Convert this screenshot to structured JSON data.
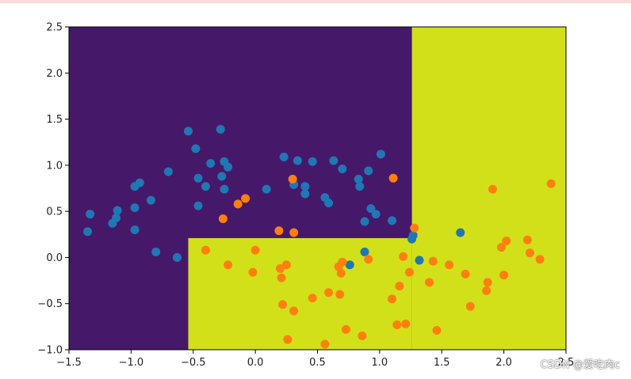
{
  "chart_data": {
    "type": "scatter",
    "title": "",
    "xlabel": "",
    "ylabel": "",
    "xlim": [
      -1.5,
      2.5
    ],
    "ylim": [
      -1.0,
      2.5
    ],
    "xticks": [
      "−1.5",
      "−1.0",
      "−0.5",
      "0.0",
      "0.5",
      "1.0",
      "1.5",
      "2.0",
      "2.5"
    ],
    "yticks": [
      "−1.0",
      "−0.5",
      "0.0",
      "0.5",
      "1.0",
      "1.5",
      "2.0",
      "2.5"
    ],
    "xtick_values": [
      -1.5,
      -1.0,
      -0.5,
      0.0,
      0.5,
      1.0,
      1.5,
      2.0,
      2.5
    ],
    "ytick_values": [
      -1.0,
      -0.5,
      0.0,
      0.5,
      1.0,
      1.5,
      2.0,
      2.5
    ],
    "grid": false,
    "decision_regions": {
      "class0_color": "#46186a",
      "class1_color": "#d2e019",
      "class1_rects": [
        {
          "x0": 1.26,
          "x1": 2.5,
          "y0": -1.0,
          "y1": 2.5
        },
        {
          "x0": -0.54,
          "x1": 1.26,
          "y0": -1.0,
          "y1": 0.21
        }
      ]
    },
    "series": [
      {
        "color": "#1f77b4",
        "points": [
          [
            -1.33,
            0.47
          ],
          [
            -1.35,
            0.28
          ],
          [
            -1.15,
            0.37
          ],
          [
            -1.12,
            0.43
          ],
          [
            -1.11,
            0.51
          ],
          [
            -0.97,
            0.77
          ],
          [
            -0.93,
            0.81
          ],
          [
            -0.97,
            0.54
          ],
          [
            -0.97,
            0.3
          ],
          [
            -0.84,
            0.62
          ],
          [
            -0.8,
            0.06
          ],
          [
            -0.7,
            0.93
          ],
          [
            -0.63,
            0.0
          ],
          [
            -0.54,
            1.37
          ],
          [
            -0.48,
            1.18
          ],
          [
            -0.46,
            0.86
          ],
          [
            -0.46,
            0.56
          ],
          [
            -0.4,
            0.77
          ],
          [
            -0.36,
            1.02
          ],
          [
            -0.28,
            1.39
          ],
          [
            -0.27,
            0.88
          ],
          [
            -0.25,
            1.04
          ],
          [
            -0.22,
            0.98
          ],
          [
            -0.25,
            0.74
          ],
          [
            0.09,
            0.74
          ],
          [
            0.23,
            1.09
          ],
          [
            0.31,
            0.79
          ],
          [
            0.34,
            1.05
          ],
          [
            0.4,
            0.77
          ],
          [
            0.4,
            0.69
          ],
          [
            0.46,
            1.04
          ],
          [
            0.56,
            0.65
          ],
          [
            0.59,
            0.59
          ],
          [
            0.63,
            1.05
          ],
          [
            0.7,
            0.96
          ],
          [
            0.83,
            0.85
          ],
          [
            0.84,
            0.77
          ],
          [
            0.88,
            0.39
          ],
          [
            0.91,
            0.94
          ],
          [
            0.93,
            0.53
          ],
          [
            0.97,
            0.47
          ],
          [
            1.01,
            1.12
          ],
          [
            1.1,
            0.4
          ],
          [
            0.76,
            -0.08
          ],
          [
            0.88,
            0.06
          ],
          [
            1.26,
            0.2
          ],
          [
            1.27,
            0.24
          ],
          [
            1.32,
            -0.03
          ],
          [
            1.65,
            0.27
          ]
        ]
      },
      {
        "color": "#ff7f0e",
        "points": [
          [
            -0.4,
            0.08
          ],
          [
            -0.26,
            0.42
          ],
          [
            -0.22,
            -0.08
          ],
          [
            -0.14,
            0.58
          ],
          [
            -0.08,
            0.64
          ],
          [
            -0.02,
            -0.16
          ],
          [
            0.0,
            0.08
          ],
          [
            0.19,
            0.29
          ],
          [
            0.2,
            -0.12
          ],
          [
            0.21,
            -0.22
          ],
          [
            0.22,
            -0.51
          ],
          [
            0.25,
            -0.08
          ],
          [
            0.26,
            -0.89
          ],
          [
            0.3,
            0.85
          ],
          [
            0.31,
            0.27
          ],
          [
            0.31,
            -0.58
          ],
          [
            0.46,
            -0.44
          ],
          [
            0.56,
            -0.94
          ],
          [
            0.59,
            -0.38
          ],
          [
            0.67,
            -0.1
          ],
          [
            0.68,
            -0.4
          ],
          [
            0.69,
            -0.17
          ],
          [
            0.7,
            -0.05
          ],
          [
            0.73,
            -0.78
          ],
          [
            0.86,
            -0.85
          ],
          [
            0.91,
            -0.02
          ],
          [
            1.1,
            -0.45
          ],
          [
            1.11,
            0.86
          ],
          [
            1.14,
            -0.73
          ],
          [
            1.16,
            -0.31
          ],
          [
            1.19,
            0.01
          ],
          [
            1.21,
            -0.72
          ],
          [
            1.24,
            -0.16
          ],
          [
            1.28,
            0.32
          ],
          [
            1.4,
            -0.27
          ],
          [
            1.43,
            -0.04
          ],
          [
            1.46,
            -0.79
          ],
          [
            1.56,
            -0.08
          ],
          [
            1.69,
            -0.18
          ],
          [
            1.73,
            -0.53
          ],
          [
            1.86,
            -0.36
          ],
          [
            1.87,
            -0.27
          ],
          [
            1.91,
            0.74
          ],
          [
            1.98,
            0.11
          ],
          [
            2.0,
            -0.19
          ],
          [
            2.02,
            0.18
          ],
          [
            2.19,
            0.19
          ],
          [
            2.21,
            0.05
          ],
          [
            2.29,
            -0.02
          ],
          [
            2.38,
            0.8
          ]
        ]
      }
    ]
  },
  "watermark": "CSDN @爱吃肉c"
}
